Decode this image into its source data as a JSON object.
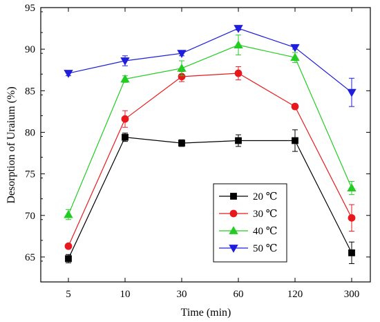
{
  "chart_data": {
    "type": "line",
    "title": "",
    "xlabel": "Time (min)",
    "ylabel": "Desorption of  Uraium (%)",
    "categories": [
      "5",
      "10",
      "30",
      "60",
      "120",
      "300"
    ],
    "ylim": [
      62,
      95
    ],
    "yticks": [
      65,
      70,
      75,
      80,
      85,
      90,
      95
    ],
    "grid": false,
    "legend_position": "bottom-center",
    "series": [
      {
        "name": "20 ℃",
        "color": "#000000",
        "marker": "square",
        "values": [
          64.8,
          79.4,
          78.7,
          79.0,
          79.0,
          65.5
        ],
        "errors": [
          0.5,
          0.5,
          0.4,
          0.7,
          1.3,
          1.3
        ]
      },
      {
        "name": "30 ℃",
        "color": "#e8191c",
        "marker": "circle",
        "values": [
          66.3,
          81.6,
          86.7,
          87.1,
          83.1,
          69.7
        ],
        "errors": [
          0.2,
          1.0,
          0.6,
          0.8,
          0.3,
          1.6
        ]
      },
      {
        "name": "40 ℃",
        "color": "#22cc22",
        "marker": "triangle-up",
        "values": [
          70.1,
          86.4,
          87.7,
          90.5,
          89.0,
          73.3
        ],
        "errors": [
          0.6,
          0.4,
          0.9,
          1.2,
          0.6,
          0.8
        ]
      },
      {
        "name": "50 ℃",
        "color": "#1e1edc",
        "marker": "triangle-down",
        "values": [
          87.1,
          88.6,
          89.5,
          92.5,
          90.2,
          84.8
        ],
        "errors": [
          0.3,
          0.6,
          0.3,
          0.2,
          0.2,
          1.7
        ]
      }
    ]
  }
}
